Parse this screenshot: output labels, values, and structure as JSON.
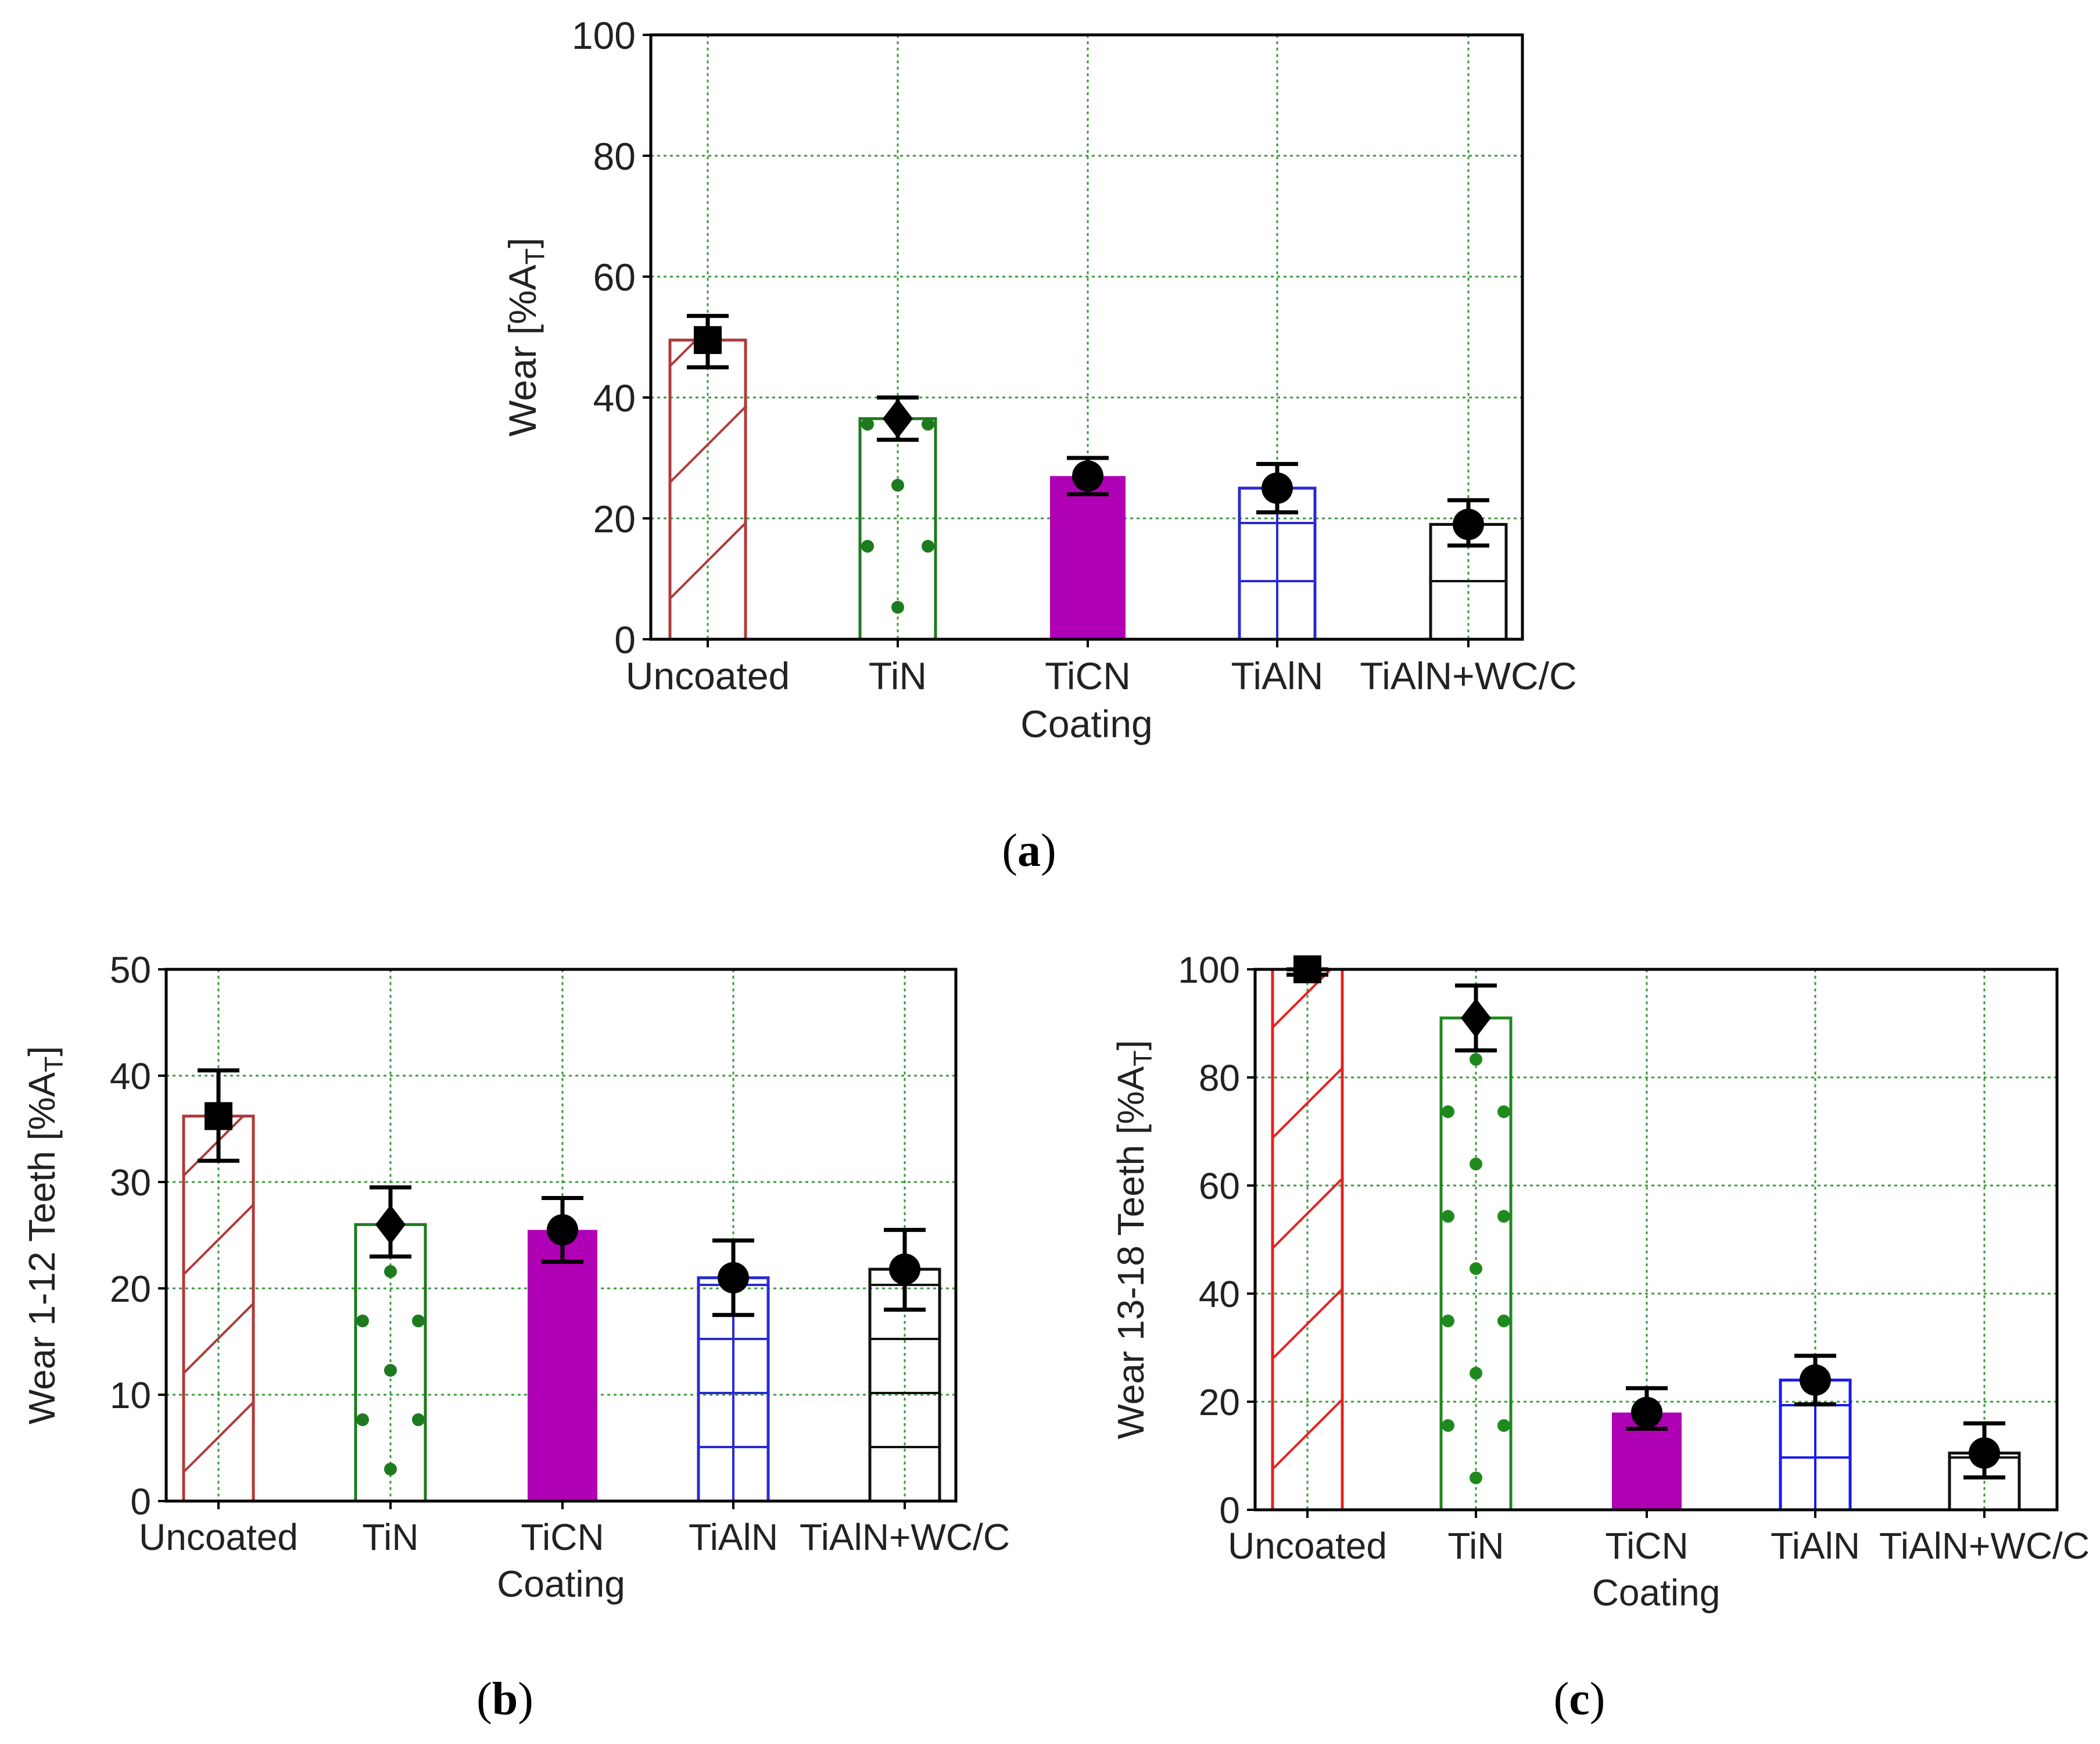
{
  "chart_data": [
    {
      "type": "bar",
      "panel_label": "a",
      "caption_open": "(",
      "caption_close": ")",
      "title": "",
      "xlabel": "Coating",
      "ylabel": "Wear [%A",
      "ylabel_sub": "T",
      "ylabel_end": "]",
      "ylim": [
        0,
        100
      ],
      "yticks": [
        0,
        20,
        40,
        60,
        80,
        100
      ],
      "grid": true,
      "categories": [
        "Uncoated",
        "TiN",
        "TiCN",
        "TiAlN",
        "TiAlN+WC/C"
      ],
      "values": [
        49.5,
        36.5,
        27,
        25,
        19
      ],
      "error_low": [
        45,
        33,
        24,
        21,
        15.5
      ],
      "error_high": [
        53.5,
        40,
        30,
        29,
        23
      ],
      "markers": [
        "square",
        "diamond",
        "circle",
        "circle",
        "circle"
      ]
    },
    {
      "type": "bar",
      "panel_label": "b",
      "caption_open": "(",
      "caption_close": ")",
      "title": "",
      "xlabel": "Coating",
      "ylabel": "Wear 1-12 Teeth [%A",
      "ylabel_sub": "T",
      "ylabel_end": "]",
      "ylim": [
        0,
        50
      ],
      "yticks": [
        0,
        10,
        20,
        30,
        40,
        50
      ],
      "grid": true,
      "categories": [
        "Uncoated",
        "TiN",
        "TiCN",
        "TiAlN",
        "TiAlN+WC/C"
      ],
      "values": [
        36.2,
        26,
        25.5,
        21,
        21.8
      ],
      "error_low": [
        32,
        23,
        22.5,
        17.5,
        18
      ],
      "error_high": [
        40.5,
        29.5,
        28.5,
        24.5,
        25.5
      ],
      "markers": [
        "square",
        "diamond",
        "circle",
        "circle",
        "circle"
      ]
    },
    {
      "type": "bar",
      "panel_label": "c",
      "caption_open": "(",
      "caption_close": ")",
      "title": "",
      "xlabel": "Coating",
      "ylabel": "Wear 13-18 Teeth [%A",
      "ylabel_sub": "T",
      "ylabel_end": "]",
      "ylim": [
        0,
        100
      ],
      "yticks": [
        0,
        20,
        40,
        60,
        80,
        100
      ],
      "grid": true,
      "categories": [
        "Uncoated",
        "TiN",
        "TiCN",
        "TiAlN",
        "TiAlN+WC/C"
      ],
      "values": [
        100,
        91,
        18,
        24,
        10.5
      ],
      "error_low": [
        99,
        85,
        15,
        19.5,
        6
      ],
      "error_high": [
        100,
        97,
        22.5,
        28.5,
        16
      ],
      "markers": [
        "square",
        "diamond",
        "circle",
        "circle",
        "circle"
      ]
    }
  ],
  "bar_styles": [
    {
      "name": "Uncoated",
      "hatch": "diagonal",
      "colors": [
        "#b03a3a",
        "#b03a3a",
        "#e82020"
      ]
    },
    {
      "name": "TiN",
      "hatch": "dots",
      "colors": [
        "#1e7a1e",
        "#1e7a1e",
        "#1e8a1e"
      ]
    },
    {
      "name": "TiCN",
      "hatch": "solid",
      "colors": [
        "#b000b5",
        "#b000b5",
        "#b000b5"
      ]
    },
    {
      "name": "TiAlN",
      "hatch": "grid",
      "colors": [
        "#2a2ad0",
        "#2a2ad0",
        "#1a1af0"
      ]
    },
    {
      "name": "TiAlN+WC/C",
      "hatch": "horizontal",
      "colors": [
        "#111111",
        "#111111",
        "#111111"
      ]
    }
  ],
  "colors": {
    "grid": "#3a9a3a",
    "axis": "#000000",
    "marker": "#000000"
  }
}
